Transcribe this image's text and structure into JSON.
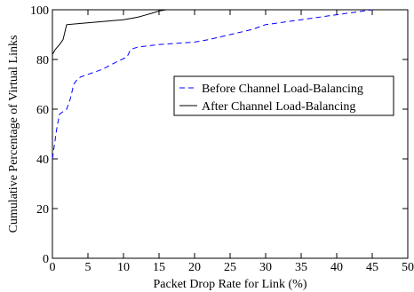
{
  "chart_data": {
    "type": "line",
    "title": "",
    "xlabel": "Packet Drop Rate for Link (%)",
    "ylabel": "Cumulative Percentage of Virtual Links",
    "xlim": [
      0,
      50
    ],
    "ylim": [
      0,
      100
    ],
    "xticks": [
      0,
      5,
      10,
      15,
      20,
      25,
      30,
      35,
      40,
      45,
      50
    ],
    "yticks": [
      0,
      20,
      40,
      60,
      80,
      100
    ],
    "grid": false,
    "legend_position": "center-right",
    "series": [
      {
        "name": "Before Channel Load-Balancing",
        "style": "dashed",
        "color": "#0000ff",
        "x": [
          0,
          0.3,
          0.6,
          1,
          2,
          2.5,
          3,
          3.5,
          4,
          5,
          7,
          9,
          10.5,
          11,
          12,
          15,
          20,
          22,
          25,
          28,
          30,
          35,
          40,
          45
        ],
        "y": [
          40,
          46,
          52,
          58,
          60,
          64,
          70,
          72,
          73,
          74,
          76,
          79,
          81,
          84,
          85,
          86,
          87,
          88,
          90,
          92,
          94,
          96,
          98,
          100
        ]
      },
      {
        "name": "After Channel Load-Balancing",
        "style": "solid",
        "color": "#000000",
        "x": [
          0,
          0.4,
          1,
          1.5,
          2,
          4,
          6,
          8,
          10,
          12,
          13,
          14,
          15,
          16
        ],
        "y": [
          82,
          84,
          86,
          88,
          94,
          94.5,
          95,
          95.5,
          96,
          97,
          97.8,
          98.6,
          99.5,
          100
        ]
      }
    ]
  }
}
